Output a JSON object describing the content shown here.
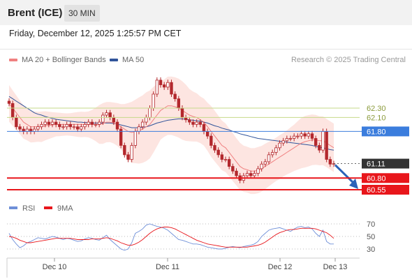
{
  "header": {
    "title": "Brent (ICE)",
    "timeframe": "30 MIN",
    "datetime": "Friday, December 12, 2025 1:25:57 PM CET"
  },
  "legend": {
    "ma20_label": "MA 20 + Bollinger Bands",
    "ma50_label": "MA 50",
    "credit": "Research © 2025 Trading Central"
  },
  "colors": {
    "ma20": "#f08080",
    "bollinger_fill": "#fde0dc",
    "ma50": "#30549a",
    "candle": "#b3282d",
    "pivot": "#3b7ddd",
    "resistance": "#c6d98a",
    "support": "#e8161b",
    "last": "#333333",
    "rsi": "#6e8fd8",
    "rsi_ma": "#e8161b"
  },
  "chart_data": [
    {
      "type": "candlestick",
      "x_tick_labels": [
        "Dec 10",
        "Dec 11",
        "Dec 12",
        "Dec 13"
      ],
      "series": [
        {
          "name": "MA 20 + Bollinger Bands"
        },
        {
          "name": "MA 50"
        }
      ],
      "levels": [
        {
          "value": 62.3,
          "label": "62.30",
          "kind": "resistance"
        },
        {
          "value": 62.1,
          "label": "62.10",
          "kind": "resistance"
        },
        {
          "value": 61.8,
          "label": "61.80",
          "kind": "pivot"
        },
        {
          "value": 61.11,
          "label": "61.11",
          "kind": "last"
        },
        {
          "value": 60.8,
          "label": "60.80",
          "kind": "support"
        },
        {
          "value": 60.55,
          "label": "60.55",
          "kind": "support"
        }
      ],
      "close": [
        62.4,
        62.1,
        61.9,
        61.85,
        61.8,
        61.85,
        61.8,
        61.85,
        61.9,
        61.95,
        62.0,
        61.95,
        62.0,
        61.95,
        61.9,
        61.9,
        61.95,
        61.9,
        61.9,
        61.85,
        61.9,
        61.95,
        62.0,
        61.95,
        61.95,
        62.0,
        62.15,
        62.2,
        62.1,
        62.0,
        61.85,
        61.5,
        61.3,
        61.2,
        61.5,
        61.8,
        61.9,
        62.0,
        62.1,
        62.3,
        62.6,
        62.9,
        62.8,
        62.75,
        62.85,
        62.6,
        62.5,
        62.3,
        62.1,
        62.05,
        62.0,
        61.95,
        62.0,
        61.95,
        61.8,
        61.7,
        61.5,
        61.4,
        61.3,
        61.2,
        61.2,
        61.05,
        60.95,
        60.85,
        60.75,
        60.85,
        60.9,
        60.85,
        60.9,
        61.0,
        61.1,
        61.15,
        61.3,
        61.35,
        61.45,
        61.55,
        61.6,
        61.65,
        61.65,
        61.7,
        61.7,
        61.75,
        61.7,
        61.75,
        61.65,
        61.5,
        61.4,
        61.8,
        61.2,
        61.1,
        61.11
      ],
      "ma20_approx": [
        62.4,
        62.3,
        62.2,
        62.1,
        62.0,
        61.95,
        61.9,
        61.9,
        61.9,
        61.9,
        61.92,
        61.93,
        61.94,
        61.95,
        61.95,
        61.95,
        61.95,
        61.95,
        61.95,
        61.95,
        61.95,
        61.95,
        61.95,
        61.95,
        61.95,
        61.95,
        61.97,
        62.0,
        62.0,
        61.98,
        61.95,
        61.9,
        61.85,
        61.8,
        61.78,
        61.8,
        61.82,
        61.85,
        61.9,
        61.95,
        62.05,
        62.15,
        62.25,
        62.3,
        62.35,
        62.35,
        62.33,
        62.3,
        62.25,
        62.2,
        62.15,
        62.12,
        62.1,
        62.05,
        62.0,
        61.9,
        61.8,
        61.7,
        61.6,
        61.5,
        61.45,
        61.35,
        61.25,
        61.15,
        61.05,
        61.0,
        60.98,
        60.95,
        60.95,
        60.97,
        61.0,
        61.05,
        61.1,
        61.15,
        61.2,
        61.25,
        61.3,
        61.35,
        61.4,
        61.45,
        61.5,
        61.55,
        61.58,
        61.6,
        61.62,
        61.62,
        61.6,
        61.6,
        61.55,
        61.5,
        61.45
      ],
      "ma50_approx": [
        62.55,
        62.5,
        62.45,
        62.4,
        62.35,
        62.3,
        62.25,
        62.2,
        62.17,
        62.15,
        62.12,
        62.1,
        62.08,
        62.06,
        62.05,
        62.04,
        62.03,
        62.02,
        62.01,
        62.0,
        62.0,
        61.99,
        61.99,
        61.98,
        61.98,
        61.98,
        61.98,
        61.98,
        61.98,
        61.97,
        61.96,
        61.94,
        61.92,
        61.9,
        61.88,
        61.88,
        61.88,
        61.89,
        61.9,
        61.92,
        61.95,
        61.98,
        62.0,
        62.02,
        62.04,
        62.05,
        62.06,
        62.07,
        62.07,
        62.06,
        62.05,
        62.04,
        62.03,
        62.02,
        62.0,
        61.98,
        61.95,
        61.92,
        61.9,
        61.87,
        61.85,
        61.83,
        61.8,
        61.78,
        61.75,
        61.73,
        61.71,
        61.69,
        61.67,
        61.65,
        61.64,
        61.63,
        61.62,
        61.61,
        61.6,
        61.59,
        61.58,
        61.57,
        61.56,
        61.55,
        61.54,
        61.53,
        61.52,
        61.51,
        61.5,
        61.48,
        61.46,
        61.45,
        61.43,
        61.41,
        61.4
      ]
    },
    {
      "type": "line",
      "series": [
        {
          "name": "RSI"
        },
        {
          "name": "9MA"
        }
      ],
      "y_tick_labels": [
        "70",
        "50",
        "30"
      ],
      "ylim": [
        20,
        80
      ],
      "rsi_approx": [
        55,
        45,
        38,
        32,
        35,
        40,
        42,
        45,
        48,
        47,
        46,
        48,
        50,
        49,
        47,
        45,
        47,
        46,
        44,
        42,
        43,
        46,
        48,
        47,
        45,
        44,
        48,
        52,
        45,
        40,
        35,
        30,
        28,
        30,
        40,
        55,
        58,
        62,
        68,
        70,
        68,
        66,
        65,
        63,
        60,
        55,
        50,
        45,
        44,
        42,
        40,
        38,
        38,
        37,
        35,
        33,
        32,
        31,
        30,
        30,
        31,
        33,
        34,
        33,
        32,
        34,
        35,
        36,
        38,
        42,
        50,
        55,
        60,
        62,
        63,
        64,
        62,
        60,
        58,
        62,
        65,
        66,
        64,
        65,
        62,
        55,
        50,
        60,
        42,
        38,
        38
      ],
      "ma9_approx": [
        50,
        49,
        47,
        44,
        42,
        40,
        40,
        41,
        42,
        43,
        44,
        45,
        46,
        47,
        47,
        47,
        47,
        47,
        46,
        45,
        45,
        45,
        45,
        46,
        46,
        46,
        47,
        48,
        47,
        45,
        43,
        40,
        38,
        36,
        36,
        38,
        41,
        45,
        50,
        55,
        59,
        62,
        64,
        65,
        65,
        64,
        62,
        59,
        56,
        53,
        50,
        47,
        44,
        42,
        40,
        38,
        37,
        36,
        35,
        34,
        33,
        33,
        33,
        33,
        33,
        33,
        33,
        34,
        35,
        36,
        38,
        41,
        45,
        49,
        53,
        56,
        58,
        60,
        61,
        61,
        62,
        63,
        63,
        63,
        63,
        62,
        60,
        58,
        56,
        52,
        47
      ]
    }
  ]
}
